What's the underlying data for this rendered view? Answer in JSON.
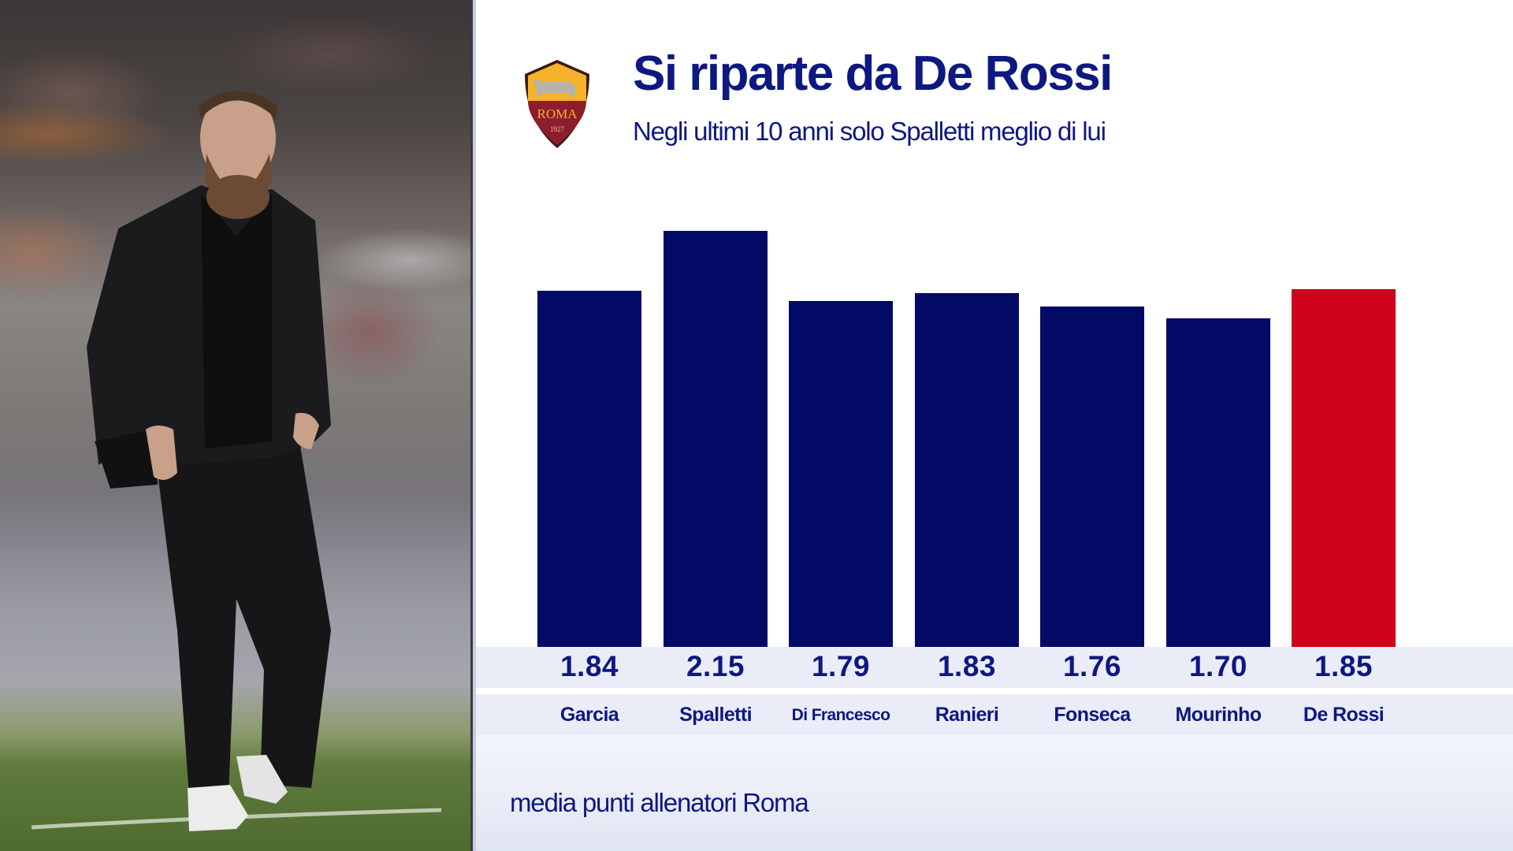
{
  "header": {
    "title": "Si riparte da De Rossi",
    "subtitle": "Negli ultimi 10 anni solo Spalletti meglio di lui",
    "logo": {
      "text": "ROMA",
      "year": "1927"
    }
  },
  "footer": {
    "caption": "media punti allenatori Roma"
  },
  "colors": {
    "bar_default": "#020a66",
    "bar_highlight": "#d0021b",
    "text_navy": "#0d1880",
    "band_bg": "#eaecf8"
  },
  "bars": [
    {
      "name": "Garcia",
      "value": "1.84"
    },
    {
      "name": "Spalletti",
      "value": "2.15"
    },
    {
      "name": "Di Francesco",
      "value": "1.79"
    },
    {
      "name": "Ranieri",
      "value": "1.83"
    },
    {
      "name": "Fonseca",
      "value": "1.76"
    },
    {
      "name": "Mourinho",
      "value": "1.70"
    },
    {
      "name": "De Rossi",
      "value": "1.85"
    }
  ],
  "chart_data": {
    "type": "bar",
    "title": "Si riparte da De Rossi",
    "subtitle": "Negli ultimi 10 anni solo Spalletti meglio di lui",
    "categories": [
      "Garcia",
      "Spalletti",
      "Di Francesco",
      "Ranieri",
      "Fonseca",
      "Mourinho",
      "De Rossi"
    ],
    "values": [
      1.84,
      2.15,
      1.79,
      1.83,
      1.76,
      1.7,
      1.85
    ],
    "highlight": "De Rossi",
    "xlabel": "",
    "ylabel": "media punti allenatori Roma",
    "ylim": [
      0,
      2.2
    ],
    "grid": false,
    "data_labels": true,
    "legend": "none"
  }
}
